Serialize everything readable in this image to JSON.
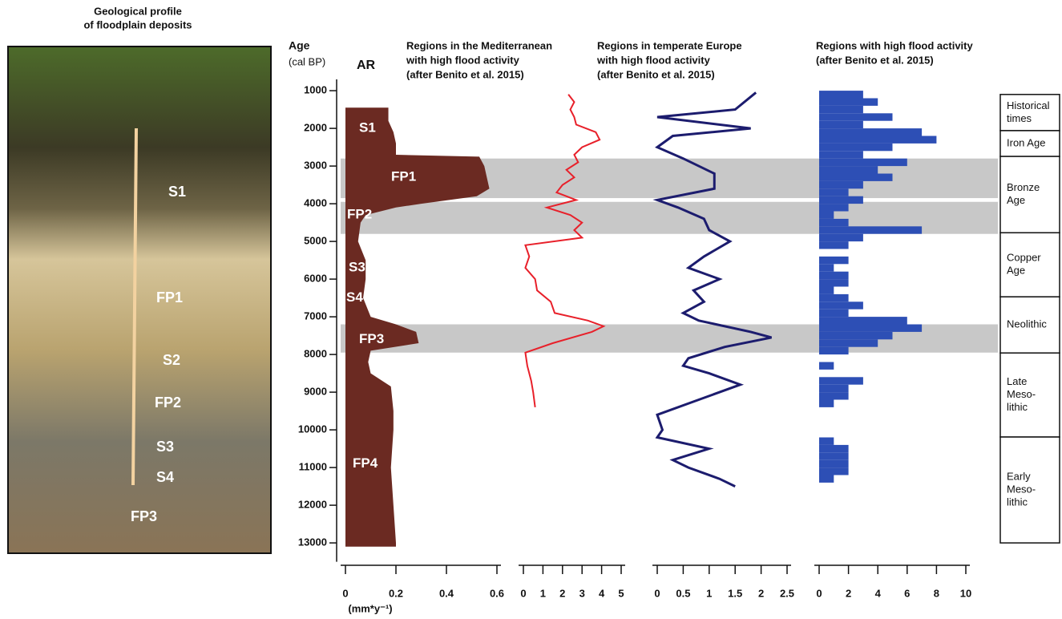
{
  "photo": {
    "title": [
      "Geological profile",
      "of floodplain deposits"
    ],
    "labels": [
      "S1",
      "FP1",
      "S2",
      "FP2",
      "S3",
      "S4",
      "FP3"
    ]
  },
  "highlights": [
    [
      2800,
      3850
    ],
    [
      3950,
      4800
    ],
    [
      7200,
      7950
    ]
  ],
  "periods": [
    {
      "lines": [
        "Historical",
        "times"
      ],
      "start": 1100,
      "end": 2060
    },
    {
      "lines": [
        "Iron Age"
      ],
      "start": 2060,
      "end": 2745
    },
    {
      "lines": [
        "Bronze",
        "Age"
      ],
      "start": 2745,
      "end": 4770
    },
    {
      "lines": [
        "Copper",
        "Age"
      ],
      "start": 4770,
      "end": 6470
    },
    {
      "lines": [
        "Neolithic"
      ],
      "start": 6470,
      "end": 7960
    },
    {
      "lines": [
        "Late",
        "Meso-",
        "lithic"
      ],
      "start": 7960,
      "end": 10190
    },
    {
      "lines": [
        "Early",
        "Meso-",
        "lithic"
      ],
      "start": 10190,
      "end": 13000
    }
  ],
  "chart_data": [
    {
      "type": "profile",
      "title": [
        "AR"
      ],
      "ylabel": [
        "Age",
        "(cal BP)"
      ],
      "xlabel": "(mm*y⁻¹)",
      "color": "#6b2a22",
      "inverted": true,
      "x": [
        1450,
        1800,
        2100,
        2400,
        2700,
        2750,
        3000,
        3300,
        3600,
        3800,
        4000,
        4100,
        4300,
        4500,
        5000,
        5500,
        6000,
        6500,
        7000,
        7200,
        7400,
        7700,
        7900,
        8200,
        8500,
        8850,
        9500,
        10000,
        11000,
        12000,
        13000,
        13100
      ],
      "values": [
        0.17,
        0.17,
        0.19,
        0.2,
        0.2,
        0.53,
        0.55,
        0.56,
        0.57,
        0.52,
        0.3,
        0.2,
        0.08,
        0.06,
        0.05,
        0.08,
        0.08,
        0.07,
        0.1,
        0.2,
        0.28,
        0.29,
        0.1,
        0.09,
        0.1,
        0.18,
        0.19,
        0.19,
        0.18,
        0.19,
        0.2,
        0.2
      ],
      "annotations": [
        "S1",
        "FP1",
        "FP2",
        "S3",
        "S4",
        "FP3",
        "FP4"
      ],
      "xlim": [
        0,
        0.6
      ],
      "xticks": [
        0,
        0.2,
        0.4,
        0.6
      ],
      "ylim": [
        700,
        13500
      ],
      "yticks": [
        1000,
        2000,
        3000,
        4000,
        5000,
        6000,
        7000,
        8000,
        9000,
        10000,
        11000,
        12000,
        13000
      ]
    },
    {
      "type": "line",
      "title": [
        "Regions in the Mediterranean",
        "with high flood activity",
        "(after Benito et al. 2015)"
      ],
      "color": "#e8202a",
      "inverted": true,
      "x": [
        1100,
        1300,
        1500,
        1700,
        1900,
        2100,
        2300,
        2500,
        2700,
        2900,
        3100,
        3300,
        3500,
        3700,
        3900,
        4100,
        4300,
        4500,
        4700,
        4900,
        5100,
        5400,
        5700,
        6000,
        6300,
        6600,
        6900,
        7100,
        7250,
        7400,
        7700,
        7950,
        8300,
        8700,
        9000,
        9400
      ],
      "values": [
        2.3,
        2.6,
        2.4,
        2.6,
        2.7,
        3.7,
        3.9,
        3.0,
        2.6,
        2.8,
        2.2,
        2.6,
        2.0,
        1.7,
        2.7,
        1.2,
        2.4,
        3.0,
        2.6,
        3.0,
        0.1,
        0.3,
        0.1,
        0.6,
        0.7,
        1.4,
        1.6,
        3.3,
        4.1,
        3.5,
        1.5,
        0.1,
        0.2,
        0.4,
        0.5,
        0.6
      ],
      "xlim": [
        0,
        5
      ],
      "xticks": [
        0,
        1,
        2,
        3,
        4,
        5
      ],
      "ylim": [
        700,
        13500
      ]
    },
    {
      "type": "line",
      "title": [
        "Regions in temperate Europe",
        "with high flood activity",
        "(after Benito et al. 2015)"
      ],
      "color": "#1c1c6e",
      "inverted": true,
      "x": [
        1050,
        1500,
        1700,
        2000,
        2200,
        2500,
        2800,
        3200,
        3600,
        3900,
        4100,
        4400,
        4700,
        5000,
        5400,
        5700,
        6000,
        6300,
        6600,
        6900,
        7100,
        7400,
        7550,
        7800,
        8100,
        8300,
        8500,
        8800,
        9200,
        9600,
        10000,
        10200,
        10500,
        10800,
        11000,
        11300,
        11500
      ],
      "values": [
        1.9,
        1.5,
        0,
        1.8,
        0.3,
        0,
        0.5,
        1.1,
        1.1,
        0,
        0.4,
        0.9,
        1.0,
        1.4,
        0.9,
        0.6,
        1.2,
        0.7,
        0.9,
        0.5,
        0.8,
        1.8,
        2.2,
        1.3,
        0.6,
        0.5,
        1.0,
        1.6,
        0.8,
        0,
        0.1,
        0,
        1.0,
        0.3,
        0.6,
        1.2,
        1.5
      ],
      "xlim": [
        0,
        2.5
      ],
      "xticks": [
        0,
        0.5,
        1,
        1.5,
        2,
        2.5
      ],
      "ylim": [
        700,
        13500
      ]
    },
    {
      "type": "histogram",
      "title": [
        "Regions with high flood activity",
        "(after Benito et al. 2015)"
      ],
      "color": "#2d4fb5",
      "inverted": true,
      "bins": [
        1000,
        1200,
        1400,
        1600,
        1800,
        2000,
        2200,
        2400,
        2600,
        2800,
        3000,
        3200,
        3400,
        3600,
        3800,
        4000,
        4200,
        4400,
        4600,
        4800,
        5000,
        5200,
        5400,
        5600,
        5800,
        6000,
        6200,
        6400,
        6600,
        6800,
        7000,
        7200,
        7400,
        7600,
        7800,
        8000,
        8200,
        8400,
        8600,
        8800,
        9000,
        9200,
        9400,
        9600,
        9800,
        10000,
        10200,
        10400,
        10600,
        10800,
        11000,
        11200,
        11400
      ],
      "values": [
        3,
        4,
        3,
        5,
        3,
        7,
        8,
        5,
        3,
        6,
        4,
        5,
        3,
        2,
        3,
        2,
        1,
        2,
        7,
        3,
        2,
        0,
        2,
        1,
        2,
        2,
        1,
        2,
        3,
        2,
        6,
        7,
        5,
        4,
        2,
        0,
        1,
        0,
        3,
        2,
        2,
        1,
        0,
        0,
        0,
        0,
        1,
        2,
        2,
        2,
        2,
        1
      ],
      "xlim": [
        0,
        10
      ],
      "xticks": [
        0,
        2,
        4,
        6,
        8,
        10
      ],
      "ylim": [
        700,
        13500
      ]
    }
  ]
}
